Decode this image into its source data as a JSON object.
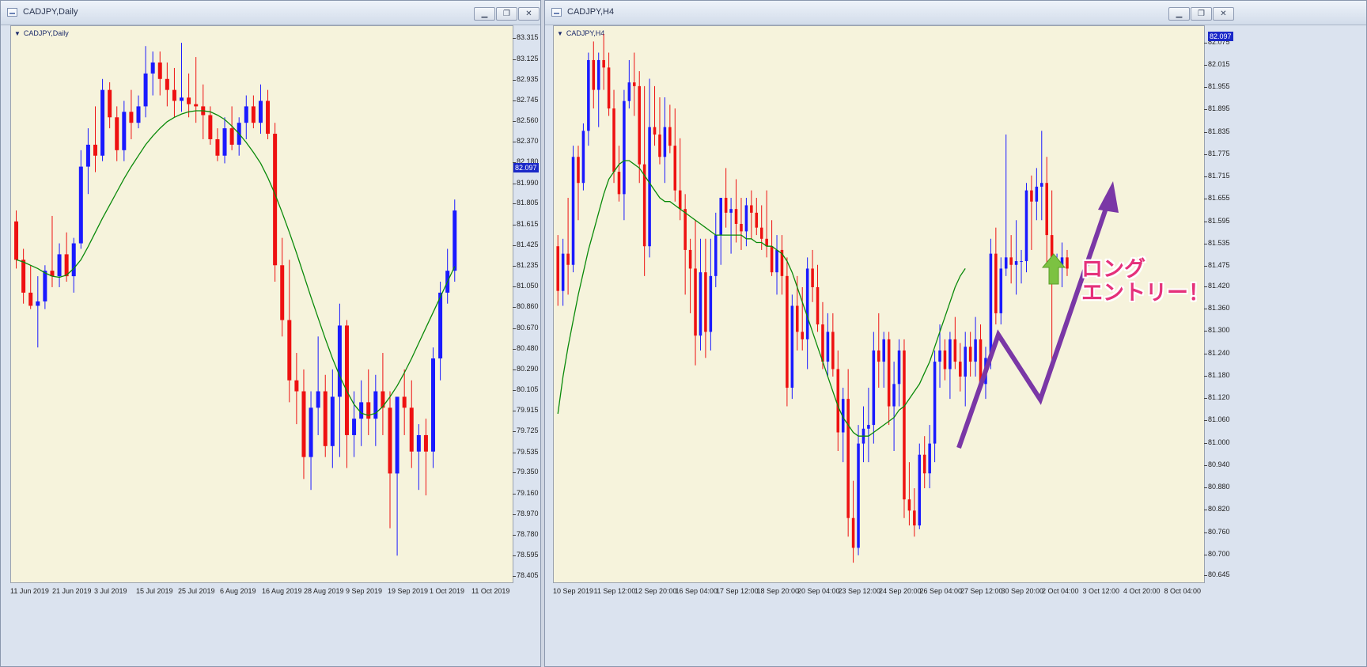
{
  "colors": {
    "bull": "#1a1aff",
    "bear": "#ee1111",
    "ma": "#0a8a0a",
    "bg": "#f6f3dc",
    "arrow": "#7a37a6",
    "annotation": "#e5317a",
    "up_arrow": "#7cc242"
  },
  "left": {
    "window_title": "CADJPY,Daily",
    "chart_label": "CADJPY,Daily",
    "price_tag": "82.097",
    "chart_data": {
      "type": "candlestick",
      "symbol": "CADJPY",
      "timeframe": "Daily",
      "ylim": [
        78.4,
        83.36
      ],
      "y_ticks": [
        "83.315",
        "83.125",
        "82.935",
        "82.745",
        "82.560",
        "82.370",
        "82.180",
        "81.990",
        "81.805",
        "81.615",
        "81.425",
        "81.235",
        "81.050",
        "80.860",
        "80.670",
        "80.480",
        "80.290",
        "80.105",
        "79.915",
        "79.725",
        "79.535",
        "79.350",
        "79.160",
        "78.970",
        "78.780",
        "78.595",
        "78.405"
      ],
      "x_ticks": [
        "11 Jun 2019",
        "21 Jun 2019",
        "3 Jul 2019",
        "15 Jul 2019",
        "25 Jul 2019",
        "6 Aug 2019",
        "16 Aug 2019",
        "28 Aug 2019",
        "9 Sep 2019",
        "19 Sep 2019",
        "1 Oct 2019",
        "11 Oct 2019"
      ],
      "n_slots": 70,
      "candles": [
        [
          81.65,
          81.75,
          81.22,
          81.3
        ],
        [
          81.3,
          81.4,
          80.9,
          81.0
        ],
        [
          81.0,
          81.25,
          80.85,
          80.88
        ],
        [
          80.88,
          81.15,
          80.5,
          80.92
        ],
        [
          80.92,
          81.25,
          80.85,
          81.2
        ],
        [
          81.2,
          81.7,
          81.05,
          81.15
        ],
        [
          81.15,
          81.45,
          81.05,
          81.35
        ],
        [
          81.35,
          81.55,
          81.1,
          81.15
        ],
        [
          81.15,
          81.5,
          81.0,
          81.45
        ],
        [
          81.45,
          82.3,
          81.4,
          82.15
        ],
        [
          82.15,
          82.5,
          81.9,
          82.35
        ],
        [
          82.35,
          82.7,
          82.1,
          82.25
        ],
        [
          82.25,
          82.95,
          82.2,
          82.85
        ],
        [
          82.85,
          82.92,
          82.5,
          82.6
        ],
        [
          82.6,
          82.7,
          82.2,
          82.3
        ],
        [
          82.3,
          82.75,
          82.2,
          82.65
        ],
        [
          82.65,
          82.85,
          82.4,
          82.55
        ],
        [
          82.55,
          82.8,
          82.5,
          82.7
        ],
        [
          82.7,
          83.25,
          82.6,
          83.0
        ],
        [
          83.0,
          83.2,
          82.8,
          83.1
        ],
        [
          83.1,
          83.2,
          82.8,
          82.95
        ],
        [
          82.95,
          83.1,
          82.7,
          82.85
        ],
        [
          82.85,
          83.05,
          82.6,
          82.75
        ],
        [
          82.75,
          83.28,
          82.65,
          82.78
        ],
        [
          82.78,
          83.0,
          82.6,
          82.72
        ],
        [
          82.72,
          83.15,
          82.55,
          82.7
        ],
        [
          82.7,
          82.9,
          82.4,
          82.62
        ],
        [
          82.62,
          82.7,
          82.35,
          82.4
        ],
        [
          82.4,
          82.5,
          82.2,
          82.25
        ],
        [
          82.25,
          82.6,
          82.18,
          82.5
        ],
        [
          82.5,
          82.7,
          82.3,
          82.35
        ],
        [
          82.35,
          82.6,
          82.25,
          82.55
        ],
        [
          82.55,
          82.8,
          82.4,
          82.7
        ],
        [
          82.7,
          82.8,
          82.5,
          82.55
        ],
        [
          82.55,
          82.9,
          82.45,
          82.75
        ],
        [
          82.75,
          82.85,
          82.4,
          82.45
        ],
        [
          82.45,
          82.55,
          81.1,
          81.25
        ],
        [
          81.25,
          81.5,
          80.6,
          80.75
        ],
        [
          80.75,
          81.3,
          80.0,
          80.2
        ],
        [
          80.2,
          80.45,
          79.8,
          80.1
        ],
        [
          80.1,
          80.3,
          79.3,
          79.5
        ],
        [
          79.5,
          80.1,
          79.2,
          79.95
        ],
        [
          79.95,
          80.6,
          79.7,
          80.1
        ],
        [
          80.1,
          80.25,
          79.5,
          79.6
        ],
        [
          79.6,
          80.3,
          79.4,
          80.05
        ],
        [
          80.05,
          80.9,
          79.5,
          80.7
        ],
        [
          80.7,
          80.75,
          79.4,
          79.7
        ],
        [
          79.7,
          80.1,
          79.5,
          79.85
        ],
        [
          79.85,
          80.2,
          79.6,
          80.0
        ],
        [
          80.0,
          80.3,
          79.7,
          79.85
        ],
        [
          79.85,
          80.25,
          79.6,
          80.1
        ],
        [
          80.1,
          80.45,
          79.7,
          79.95
        ],
        [
          79.95,
          80.1,
          78.85,
          79.35
        ],
        [
          79.35,
          80.0,
          78.6,
          80.05
        ],
        [
          80.05,
          80.3,
          79.7,
          79.95
        ],
        [
          79.95,
          80.2,
          79.4,
          79.55
        ],
        [
          79.55,
          79.8,
          79.2,
          79.7
        ],
        [
          79.7,
          79.85,
          79.15,
          79.55
        ],
        [
          79.55,
          80.5,
          79.4,
          80.4
        ],
        [
          80.4,
          81.1,
          80.2,
          81.0
        ],
        [
          81.0,
          81.4,
          80.9,
          81.2
        ],
        [
          81.2,
          81.85,
          81.1,
          81.75
        ]
      ],
      "ma_label": "MA",
      "ma": [
        81.3,
        81.28,
        81.25,
        81.22,
        81.18,
        81.15,
        81.14,
        81.16,
        81.22,
        81.3,
        81.42,
        81.55,
        81.68,
        81.8,
        81.92,
        82.04,
        82.15,
        82.25,
        82.35,
        82.43,
        82.5,
        82.56,
        82.6,
        82.63,
        82.65,
        82.66,
        82.66,
        82.65,
        82.62,
        82.58,
        82.52,
        82.45,
        82.37,
        82.28,
        82.18,
        82.05,
        81.9,
        81.73,
        81.55,
        81.36,
        81.16,
        80.96,
        80.77,
        80.58,
        80.4,
        80.24,
        80.1,
        79.98,
        79.9,
        79.88,
        79.9,
        79.96,
        80.05,
        80.15,
        80.27,
        80.4,
        80.54,
        80.68,
        80.82,
        80.96,
        81.1,
        81.24
      ]
    }
  },
  "right": {
    "window_title": "CADJPY,H4",
    "chart_label": "CADJPY,H4",
    "price_tag": "82.097",
    "annotation": {
      "line1": "ロング",
      "line2": "エントリー！"
    },
    "chart_data": {
      "type": "candlestick",
      "symbol": "CADJPY",
      "timeframe": "H4",
      "ylim": [
        80.64,
        82.1
      ],
      "y_ticks": [
        "82.075",
        "82.015",
        "81.955",
        "81.895",
        "81.835",
        "81.775",
        "81.715",
        "81.655",
        "81.595",
        "81.535",
        "81.475",
        "81.420",
        "81.360",
        "81.300",
        "81.240",
        "81.180",
        "81.120",
        "81.060",
        "81.000",
        "80.940",
        "80.880",
        "80.820",
        "80.760",
        "80.700",
        "80.645"
      ],
      "x_ticks": [
        "10 Sep 2019",
        "11 Sep 12:00",
        "12 Sep 20:00",
        "16 Sep 04:00",
        "17 Sep 12:00",
        "18 Sep 20:00",
        "20 Sep 04:00",
        "23 Sep 12:00",
        "24 Sep 20:00",
        "26 Sep 04:00",
        "27 Sep 12:00",
        "30 Sep 20:00",
        "2 Oct 04:00",
        "3 Oct 12:00",
        "4 Oct 20:00",
        "8 Oct 04:00"
      ],
      "n_slots": 128,
      "candles": [
        [
          81.53,
          81.56,
          81.37,
          81.41
        ],
        [
          81.41,
          81.55,
          81.37,
          81.51
        ],
        [
          81.51,
          81.66,
          81.4,
          81.48
        ],
        [
          81.48,
          81.8,
          81.46,
          81.77
        ],
        [
          81.77,
          81.8,
          81.6,
          81.7
        ],
        [
          81.7,
          81.86,
          81.68,
          81.84
        ],
        [
          81.84,
          82.05,
          81.8,
          82.03
        ],
        [
          82.03,
          82.08,
          81.9,
          81.95
        ],
        [
          81.95,
          82.05,
          81.85,
          82.03
        ],
        [
          82.03,
          82.1,
          81.95,
          82.01
        ],
        [
          82.01,
          82.05,
          81.88,
          81.9
        ],
        [
          81.9,
          81.95,
          81.7,
          81.73
        ],
        [
          81.73,
          81.8,
          81.65,
          81.67
        ],
        [
          81.67,
          81.95,
          81.6,
          81.92
        ],
        [
          81.92,
          82.03,
          81.9,
          81.97
        ],
        [
          81.97,
          82.05,
          81.88,
          81.96
        ],
        [
          81.96,
          82.0,
          81.7,
          81.75
        ],
        [
          81.75,
          81.96,
          81.45,
          81.53
        ],
        [
          81.53,
          81.98,
          81.5,
          81.85
        ],
        [
          81.85,
          81.96,
          81.8,
          81.83
        ],
        [
          81.83,
          81.93,
          81.75,
          81.77
        ],
        [
          81.77,
          81.93,
          81.7,
          81.85
        ],
        [
          81.85,
          81.91,
          81.78,
          81.8
        ],
        [
          81.8,
          81.9,
          81.65,
          81.68
        ],
        [
          81.68,
          81.82,
          81.6,
          81.63
        ],
        [
          81.63,
          81.67,
          81.4,
          81.52
        ],
        [
          81.52,
          81.55,
          81.35,
          81.47
        ],
        [
          81.47,
          81.6,
          81.21,
          81.29
        ],
        [
          81.29,
          81.55,
          81.25,
          81.46
        ],
        [
          81.46,
          81.55,
          81.23,
          81.3
        ],
        [
          81.3,
          81.55,
          81.25,
          81.45
        ],
        [
          81.45,
          81.62,
          81.42,
          81.56
        ],
        [
          81.56,
          81.66,
          81.48,
          81.66
        ],
        [
          81.66,
          81.74,
          81.58,
          81.62
        ],
        [
          81.62,
          81.66,
          81.51,
          81.63
        ],
        [
          81.63,
          81.71,
          81.54,
          81.59
        ],
        [
          81.59,
          81.66,
          81.52,
          81.57
        ],
        [
          81.57,
          81.66,
          81.53,
          81.64
        ],
        [
          81.64,
          81.68,
          81.55,
          81.62
        ],
        [
          81.62,
          81.66,
          81.56,
          81.58
        ],
        [
          81.58,
          81.64,
          81.52,
          81.55
        ],
        [
          81.55,
          81.68,
          81.5,
          81.53
        ],
        [
          81.53,
          81.6,
          81.45,
          81.46
        ],
        [
          81.46,
          81.56,
          81.4,
          81.52
        ],
        [
          81.52,
          81.56,
          81.4,
          81.45
        ],
        [
          81.45,
          81.5,
          81.1,
          81.15
        ],
        [
          81.15,
          81.4,
          81.12,
          81.37
        ],
        [
          81.37,
          81.45,
          81.25,
          81.3
        ],
        [
          81.3,
          81.42,
          81.25,
          81.28
        ],
        [
          81.28,
          81.5,
          81.2,
          81.47
        ],
        [
          81.47,
          81.52,
          81.38,
          81.42
        ],
        [
          81.42,
          81.48,
          81.3,
          81.32
        ],
        [
          81.32,
          81.38,
          81.2,
          81.22
        ],
        [
          81.22,
          81.35,
          81.18,
          81.3
        ],
        [
          81.3,
          81.35,
          81.18,
          81.2
        ],
        [
          81.2,
          81.25,
          80.98,
          81.03
        ],
        [
          81.03,
          81.15,
          80.95,
          81.12
        ],
        [
          81.12,
          81.2,
          80.75,
          80.8
        ],
        [
          80.8,
          80.9,
          80.68,
          80.72
        ],
        [
          80.72,
          81.05,
          80.7,
          81.0
        ],
        [
          81.0,
          81.1,
          80.95,
          81.04
        ],
        [
          81.04,
          81.15,
          80.95,
          81.05
        ],
        [
          81.05,
          81.3,
          81.0,
          81.25
        ],
        [
          81.25,
          81.35,
          81.15,
          81.22
        ],
        [
          81.22,
          81.3,
          81.15,
          81.28
        ],
        [
          81.28,
          81.3,
          81.05,
          81.1
        ],
        [
          81.1,
          81.22,
          80.98,
          81.16
        ],
        [
          81.16,
          81.28,
          81.1,
          81.25
        ],
        [
          81.25,
          81.28,
          80.8,
          80.85
        ],
        [
          80.85,
          80.95,
          80.78,
          80.82
        ],
        [
          80.82,
          80.88,
          80.75,
          80.78
        ],
        [
          80.78,
          81.0,
          80.77,
          80.97
        ],
        [
          80.97,
          81.02,
          80.88,
          80.92
        ],
        [
          80.92,
          81.05,
          80.88,
          81.0
        ],
        [
          81.0,
          81.25,
          80.95,
          81.22
        ],
        [
          81.22,
          81.32,
          81.15,
          81.25
        ],
        [
          81.25,
          81.28,
          81.17,
          81.2
        ],
        [
          81.2,
          81.3,
          81.12,
          81.28
        ],
        [
          81.28,
          81.34,
          81.2,
          81.22
        ],
        [
          81.22,
          81.27,
          81.14,
          81.18
        ],
        [
          81.18,
          81.3,
          81.1,
          81.26
        ],
        [
          81.26,
          81.3,
          81.18,
          81.22
        ],
        [
          81.22,
          81.34,
          81.18,
          81.28
        ],
        [
          81.28,
          81.32,
          81.14,
          81.16
        ],
        [
          81.16,
          81.26,
          81.12,
          81.23
        ],
        [
          81.23,
          81.55,
          81.2,
          81.51
        ],
        [
          81.51,
          81.58,
          81.32,
          81.35
        ],
        [
          81.35,
          81.5,
          81.32,
          81.47
        ],
        [
          81.47,
          81.83,
          81.45,
          81.5
        ],
        [
          81.5,
          81.56,
          81.43,
          81.48
        ],
        [
          81.48,
          81.6,
          81.4,
          81.49
        ],
        [
          81.49,
          81.52,
          81.43,
          81.49
        ],
        [
          81.49,
          81.7,
          81.46,
          81.68
        ],
        [
          81.68,
          81.72,
          81.52,
          81.65
        ],
        [
          81.65,
          81.74,
          81.6,
          81.69
        ],
        [
          81.69,
          81.84,
          81.6,
          81.7
        ],
        [
          81.7,
          81.77,
          81.48,
          81.56
        ],
        [
          81.56,
          81.68,
          81.22,
          81.47
        ],
        [
          81.47,
          81.51,
          81.43,
          81.48
        ],
        [
          81.48,
          81.54,
          81.42,
          81.5
        ],
        [
          81.5,
          81.52,
          81.45,
          81.47
        ]
      ],
      "ma_label": "MA",
      "ma": [
        81.08,
        81.18,
        81.26,
        81.33,
        81.4,
        81.46,
        81.52,
        81.57,
        81.62,
        81.67,
        81.71,
        81.73,
        81.75,
        81.76,
        81.76,
        81.75,
        81.74,
        81.72,
        81.7,
        81.68,
        81.66,
        81.65,
        81.65,
        81.64,
        81.63,
        81.62,
        81.61,
        81.6,
        81.59,
        81.58,
        81.57,
        81.56,
        81.56,
        81.56,
        81.56,
        81.56,
        81.56,
        81.55,
        81.55,
        81.54,
        81.54,
        81.53,
        81.53,
        81.52,
        81.51,
        81.49,
        81.46,
        81.42,
        81.38,
        81.34,
        81.3,
        81.26,
        81.22,
        81.18,
        81.14,
        81.1,
        81.07,
        81.05,
        81.03,
        81.02,
        81.02,
        81.02,
        81.03,
        81.04,
        81.05,
        81.06,
        81.07,
        81.09,
        81.1,
        81.12,
        81.14,
        81.16,
        81.19,
        81.22,
        81.26,
        81.3,
        81.34,
        81.38,
        81.42,
        81.45,
        81.47
      ]
    }
  }
}
